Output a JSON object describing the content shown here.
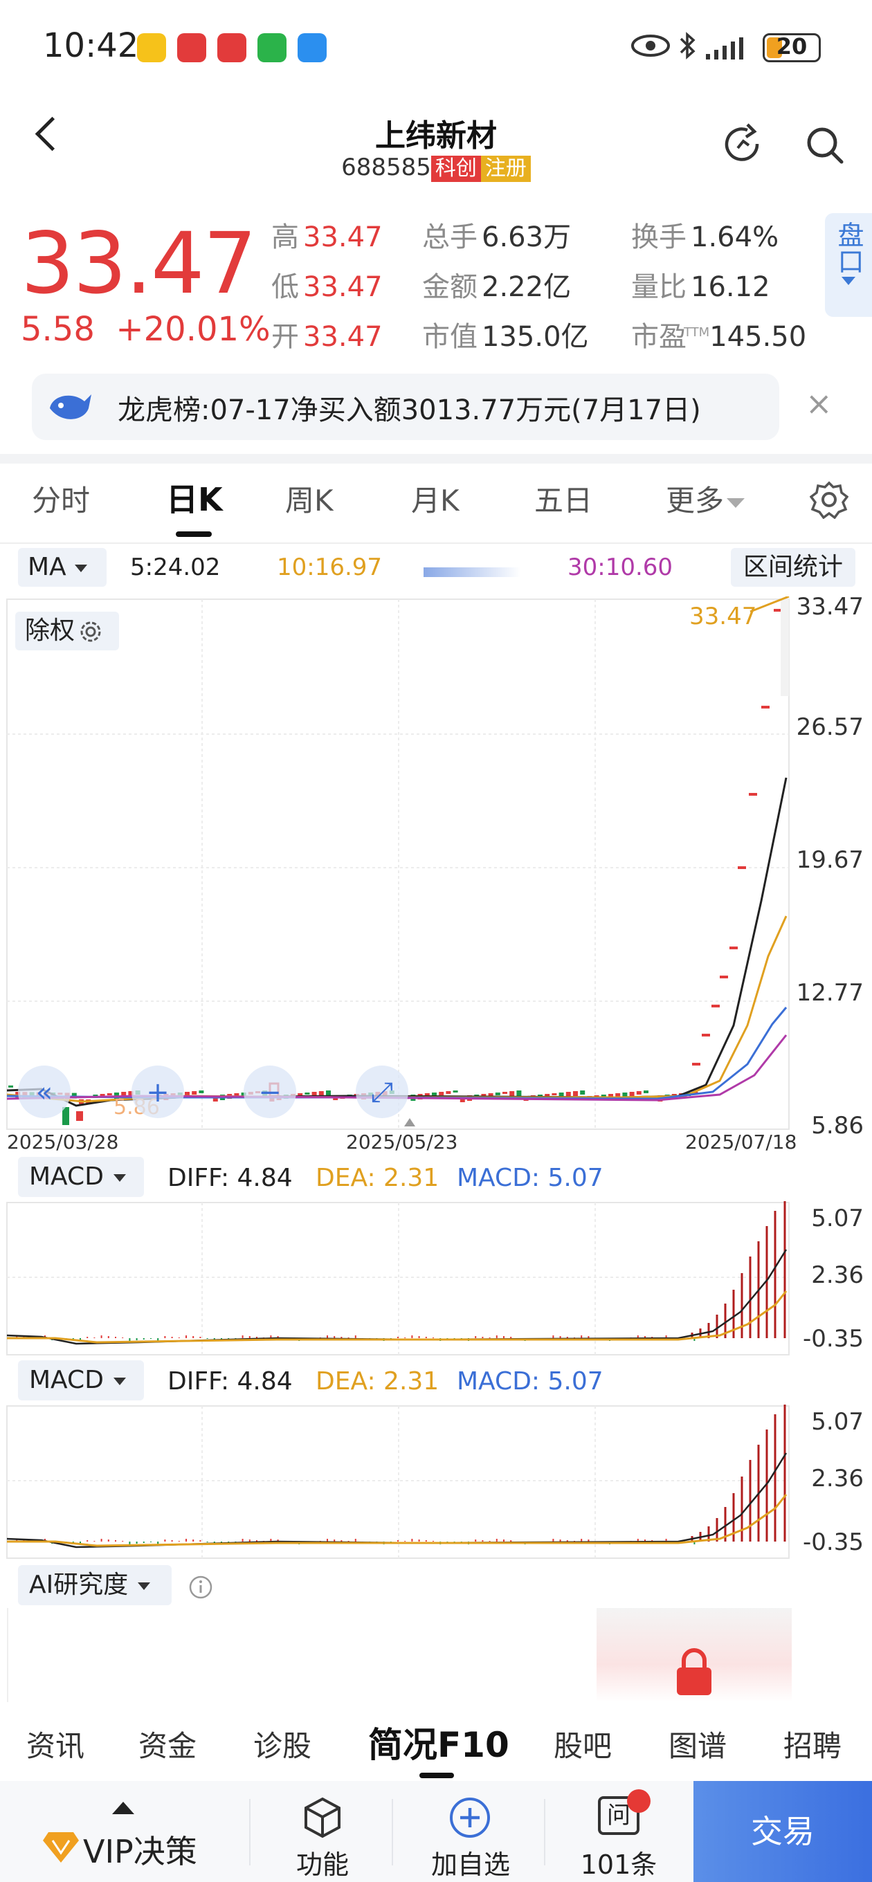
{
  "status_bar": {
    "time": "10:42",
    "battery": "20"
  },
  "header": {
    "title": "上纬新材",
    "code": "688585",
    "tag1": "科创",
    "tag2": "注册"
  },
  "quote": {
    "price": "33.47",
    "change": "5.58",
    "change_pct": "+20.01%",
    "stats": [
      {
        "label": "高",
        "value": "33.47",
        "red": true
      },
      {
        "label": "总手",
        "value": "6.63万",
        "red": false
      },
      {
        "label": "换手",
        "value": "1.64%",
        "red": false
      },
      {
        "label": "低",
        "value": "33.47",
        "red": true
      },
      {
        "label": "金额",
        "value": "2.22亿",
        "red": false
      },
      {
        "label": "量比",
        "value": "16.12",
        "red": false
      },
      {
        "label": "开",
        "value": "33.47",
        "red": true
      },
      {
        "label": "市值",
        "value": "135.0亿",
        "red": false
      },
      {
        "label": "市盈",
        "value": "145.50",
        "red": false
      }
    ],
    "pe_sup": "TTM",
    "pankou": "盘口"
  },
  "banner": {
    "text": "龙虎榜:07-17净买入额3013.77万元(7月17日)",
    "close": "×"
  },
  "tabs": [
    "分时",
    "日K",
    "周K",
    "月K",
    "五日",
    "更多"
  ],
  "ma_row": {
    "selector": "MA",
    "ma5": "5:24.02",
    "ma10": "10:16.97",
    "ma30": "30:10.60",
    "range": "区间统计"
  },
  "kline": {
    "chuquan": "除权",
    "y_labels": [
      "33.47",
      "26.57",
      "19.67",
      "12.77",
      "5.86"
    ],
    "dates": [
      "2025/03/28",
      "2025/05/23",
      "2025/07/18"
    ],
    "last_label": "33.47",
    "low_label": "5.86"
  },
  "macd1": {
    "selector": "MACD",
    "diff": "DIFF: 4.84",
    "dea": "DEA: 2.31",
    "macd": "MACD: 5.07",
    "y_labels": [
      "5.07",
      "2.36",
      "-0.35"
    ]
  },
  "macd2": {
    "selector": "MACD",
    "diff": "DIFF: 4.84",
    "dea": "DEA: 2.31",
    "macd": "MACD: 5.07",
    "y_labels": [
      "5.07",
      "2.36",
      "-0.35"
    ]
  },
  "ai": {
    "selector": "AI研究度"
  },
  "bottom_tabs": [
    "资讯",
    "资金",
    "诊股",
    "简况F10",
    "股吧",
    "图谱",
    "招聘"
  ],
  "bottom_bar": {
    "vip": "VIP决策",
    "func": "功能",
    "add": "加自选",
    "msgs": "101条",
    "msg_icon": "问",
    "trade": "交易"
  },
  "colors": {
    "red": "#e23b3b",
    "ma5": "#222222",
    "ma10": "#e0a020",
    "ma20": "#3b6fd6",
    "ma30": "#b03aa8",
    "green": "#1a9a4a"
  }
}
